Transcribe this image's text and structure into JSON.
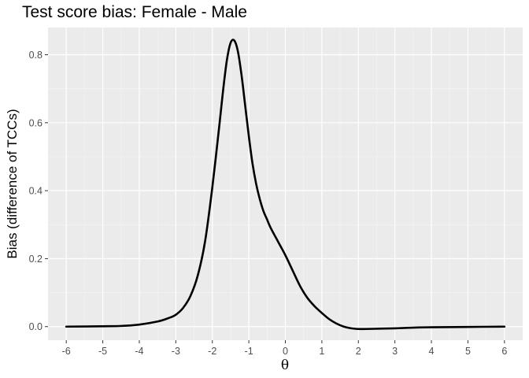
{
  "chart_data": {
    "type": "line",
    "title": "Test score bias: Female - Male",
    "xlabel": "θ",
    "ylabel": "Bias (difference of TCCs)",
    "xlim": [
      -6.5,
      6.5
    ],
    "ylim": [
      -0.04,
      0.88
    ],
    "x_ticks": [
      -6,
      -5,
      -4,
      -3,
      -2,
      -1,
      0,
      1,
      2,
      3,
      4,
      5,
      6
    ],
    "y_ticks": [
      0.0,
      0.2,
      0.4,
      0.6,
      0.8
    ],
    "y_tick_labels": [
      "0.0",
      "0.2",
      "0.4",
      "0.6",
      "0.8"
    ],
    "grid": true,
    "series": [
      {
        "color": "#000000",
        "x": [
          -6,
          -5,
          -4.5,
          -4,
          -3.5,
          -3.2,
          -3,
          -2.8,
          -2.6,
          -2.4,
          -2.2,
          -2,
          -1.8,
          -1.7,
          -1.6,
          -1.5,
          -1.4,
          -1.3,
          -1.2,
          -1.1,
          -1,
          -0.9,
          -0.8,
          -0.7,
          -0.6,
          -0.5,
          -0.4,
          -0.2,
          0,
          0.2,
          0.4,
          0.6,
          0.8,
          1,
          1.2,
          1.4,
          1.6,
          1.8,
          2,
          2.2,
          2.6,
          3,
          3.5,
          4,
          5,
          6
        ],
        "y": [
          0.0,
          0.001,
          0.002,
          0.006,
          0.015,
          0.025,
          0.035,
          0.055,
          0.09,
          0.15,
          0.25,
          0.41,
          0.6,
          0.7,
          0.785,
          0.835,
          0.842,
          0.81,
          0.74,
          0.65,
          0.56,
          0.48,
          0.42,
          0.375,
          0.34,
          0.315,
          0.29,
          0.25,
          0.21,
          0.165,
          0.12,
          0.085,
          0.06,
          0.04,
          0.022,
          0.009,
          0.0,
          -0.005,
          -0.007,
          -0.007,
          -0.006,
          -0.005,
          -0.003,
          -0.002,
          -0.001,
          0.0
        ]
      }
    ]
  }
}
